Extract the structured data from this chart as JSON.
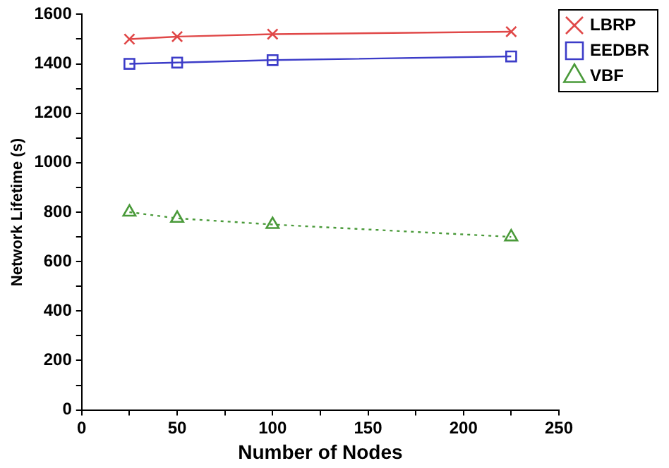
{
  "chart_data": {
    "type": "line",
    "xlabel": "Number of Nodes",
    "ylabel": "Network Lifetime (s)",
    "x": [
      25,
      50,
      100,
      225
    ],
    "series": [
      {
        "name": "LBRP",
        "color": "#e04848",
        "values": [
          1500,
          1510,
          1520,
          1530
        ],
        "marker": "cross",
        "line_style": "solid"
      },
      {
        "name": "EEDBR",
        "color": "#3c3cc8",
        "values": [
          1400,
          1405,
          1415,
          1430
        ],
        "marker": "square",
        "line_style": "solid"
      },
      {
        "name": "VBF",
        "color": "#4a9a3a",
        "values": [
          800,
          775,
          750,
          700
        ],
        "marker": "triangle",
        "line_style": "dotted"
      }
    ],
    "xlim": [
      0,
      250
    ],
    "xticks": [
      0,
      {
        "value": 25,
        "label": null
      },
      50,
      {
        "value": 75,
        "label": null
      },
      100,
      {
        "value": 125,
        "label": null
      },
      150,
      {
        "value": 175,
        "label": null
      },
      200,
      {
        "value": 225,
        "label": null
      },
      250
    ],
    "ylim": [
      0,
      1600
    ],
    "yticks": [
      0,
      {
        "value": 100,
        "label": null
      },
      200,
      {
        "value": 300,
        "label": null
      },
      400,
      {
        "value": 500,
        "label": null
      },
      600,
      {
        "value": 700,
        "label": null
      },
      800,
      {
        "value": 900,
        "label": null
      },
      1000,
      {
        "value": 1100,
        "label": null
      },
      1200,
      {
        "value": 1300,
        "label": null
      },
      1400,
      {
        "value": 1500,
        "label": null
      },
      1600
    ],
    "grid": false,
    "legend": "top right"
  }
}
